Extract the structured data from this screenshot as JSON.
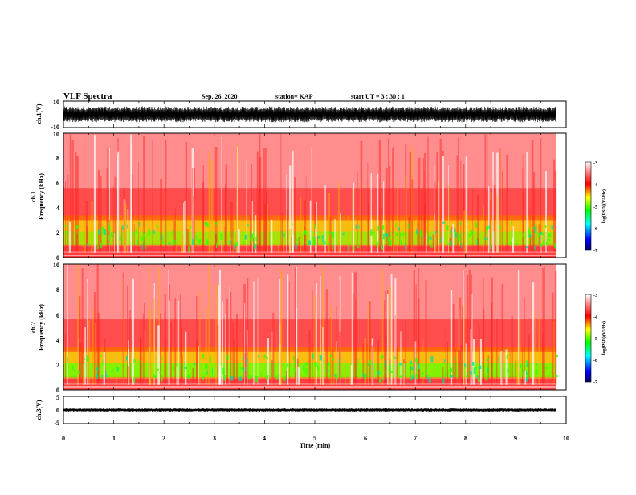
{
  "header": {
    "title": "VLF Spectra",
    "date": "Sep. 26, 2020",
    "station": "station= KAP",
    "start": "start  UT =   3 : 30 : 1"
  },
  "chart_data": [
    {
      "type": "line",
      "name": "ch1-waveform",
      "ylabel": "ch.1(V)",
      "ylim": [
        -10,
        10
      ],
      "yticks": [
        "10",
        "-10"
      ],
      "xlim": [
        0,
        10
      ],
      "description_values": {
        "baseline": 0,
        "typical_amplitude": 6,
        "data_end_min": 9.8
      }
    },
    {
      "type": "heatmap",
      "name": "ch1-spectrogram",
      "ylabel_line1": "ch.1",
      "ylabel_line2": "Frequency  (kHz)",
      "ylim": [
        0,
        10
      ],
      "yticks": [
        "0",
        "2",
        "4",
        "6",
        "8",
        "10"
      ],
      "xlim": [
        0,
        10
      ],
      "data_end_min": 9.8,
      "colorbar": {
        "label": "log(PSD)(V²/Hz)",
        "range": [
          -7,
          -3
        ],
        "ticks": [
          "-3",
          "-4",
          "-5",
          "-6",
          "-7"
        ],
        "colors": [
          "#000060",
          "#0000ff",
          "#00ffff",
          "#00ff00",
          "#ffff00",
          "#ff0000",
          "#ffffff"
        ]
      }
    },
    {
      "type": "heatmap",
      "name": "ch2-spectrogram",
      "ylabel_line1": "ch.2",
      "ylabel_line2": "Frequency  (kHz)",
      "ylim": [
        0,
        10
      ],
      "yticks": [
        "0",
        "2",
        "4",
        "6",
        "8",
        "10"
      ],
      "xlim": [
        0,
        10
      ],
      "data_end_min": 9.8,
      "colorbar": {
        "label": "log(PSD)(V²/Hz)",
        "range": [
          -7,
          -3
        ],
        "ticks": [
          "-3",
          "-4",
          "-5",
          "-6",
          "-7"
        ],
        "colors": [
          "#000060",
          "#0000ff",
          "#00ffff",
          "#00ff00",
          "#ffff00",
          "#ff0000",
          "#ffffff"
        ]
      }
    },
    {
      "type": "line",
      "name": "ch3-waveform",
      "ylabel": "ch.3(V)",
      "ylim": [
        -5,
        5
      ],
      "yticks": [
        "5",
        "0",
        "-5"
      ],
      "xlim": [
        0,
        10
      ],
      "xlabel": "Time  (min)",
      "xticks": [
        "0",
        "1",
        "2",
        "3",
        "4",
        "5",
        "6",
        "7",
        "8",
        "9",
        "10"
      ],
      "description_values": {
        "baseline": 0,
        "typical_amplitude": 0.6,
        "data_end_min": 9.8
      }
    }
  ]
}
